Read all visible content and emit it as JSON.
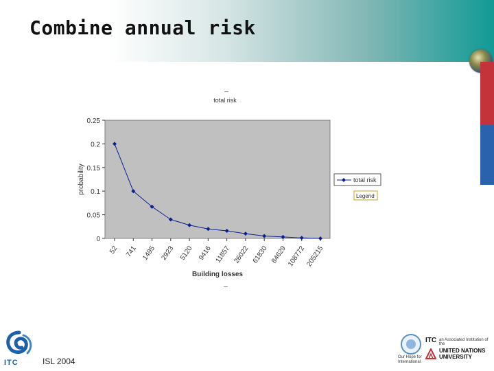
{
  "slide": {
    "title": "Combine annual risk",
    "footer_label": "ISL 2004"
  },
  "logos": {
    "itc_text": "ITC",
    "un_caption": "Our Hope for International",
    "itc_small": "ITC",
    "itc_desc": "an Associated Institution of the",
    "unu_text_line1": "UNITED NATIONS",
    "unu_text_line2": "UNIVERSITY"
  },
  "colors": {
    "plot_bg": "#c0c0c0",
    "series": "#0a1f8f",
    "accent_red": "#c4323a",
    "accent_blue": "#2b62ad",
    "accent_teal": "#119a96"
  },
  "chart_data": {
    "type": "line",
    "title": "total risk",
    "title_mark": "–",
    "xlabel": "Building losses",
    "xlabel_mark": "–",
    "ylabel": "probability",
    "ylim": [
      0,
      0.25
    ],
    "yticks": [
      "0",
      "0.05",
      "0.1",
      "0.15",
      "0.2",
      "0.25"
    ],
    "grid": false,
    "legend_position": "right",
    "legend_caption": "Legend",
    "categories": [
      "52",
      "741",
      "1495",
      "2923",
      "5120",
      "9416",
      "11857",
      "26022",
      "61830",
      "84629",
      "108772",
      "205215"
    ],
    "series": [
      {
        "name": "total risk",
        "values": [
          0.2,
          0.1,
          0.067,
          0.04,
          0.028,
          0.02,
          0.016,
          0.01,
          0.005,
          0.003,
          0.001,
          0.0
        ]
      }
    ]
  }
}
